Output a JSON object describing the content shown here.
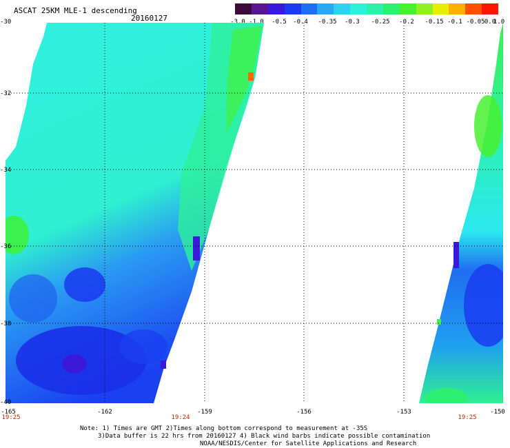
{
  "header": {
    "title": "ASCAT 25KM MLE-1 descending",
    "date": "20160127"
  },
  "colorbar": {
    "colors": [
      "#3a0a3a",
      "#5a1590",
      "#3a1ad8",
      "#1a3cf0",
      "#1f70f0",
      "#2aa8f2",
      "#30d0f0",
      "#2ff0d8",
      "#2ef0a8",
      "#2ef070",
      "#48f030",
      "#90f020",
      "#e8f000",
      "#ffb000",
      "#ff5000",
      "#ff1500"
    ],
    "labels": [
      "-3.0",
      "-1.0",
      "-0.5",
      "-0.4",
      "-0.35",
      "-0.3",
      "-0.25",
      "-0.2",
      "-0.15",
      "-0.1",
      "-0.05",
      "0.0",
      "1.0"
    ]
  },
  "axes": {
    "y_labels": [
      "-30",
      "-32",
      "-34",
      "-36",
      "-38",
      "-40"
    ],
    "x_labels": [
      "-165",
      "-162",
      "-159",
      "-156",
      "-153",
      "-150"
    ],
    "time_labels": [
      "19:25",
      "19:24",
      "19:25"
    ]
  },
  "notes": {
    "line1": "Note: 1) Times are GMT 2)Times along bottom correspond to measurement at -35S",
    "line2": "3)Data buffer is 22 hrs from 20160127 4) Black wind barbs indicate possible contamination",
    "line3": "NOAA/NESDIS/Center for Satellite Applications and Research"
  }
}
